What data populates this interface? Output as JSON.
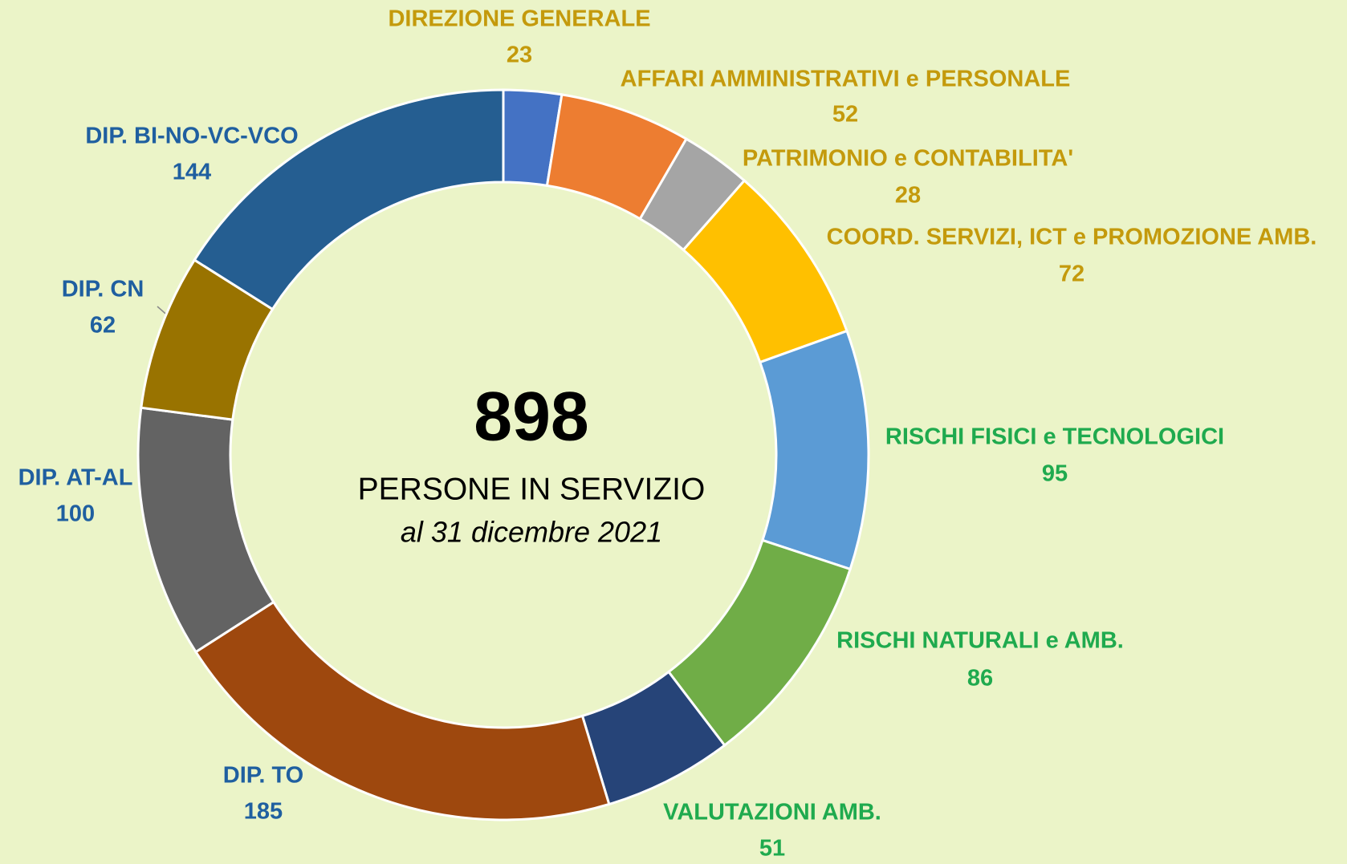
{
  "chart_data": {
    "type": "donut",
    "center_value": 898,
    "center_title": "PERSONE IN SERVIZIO",
    "center_subtitle": "al 31 dicembre 2021",
    "categories": [
      "DIREZIONE GENERALE",
      "AFFARI AMMINISTRATIVI e PERSONALE",
      "PATRIMONIO e CONTABILITA'",
      "COORD. SERVIZI, ICT e PROMOZIONE AMB.",
      "RISCHI FISICI e TECNOLOGICI",
      "RISCHI NATURALI e AMB.",
      "VALUTAZIONI AMB.",
      "DIP. TO",
      "DIP. AT-AL",
      "DIP. CN",
      "DIP. BI-NO-VC-VCO"
    ],
    "values": [
      23,
      52,
      28,
      72,
      95,
      86,
      51,
      185,
      100,
      62,
      144
    ],
    "colors": [
      "#4472c4",
      "#ed7d31",
      "#a5a5a5",
      "#ffc000",
      "#5b9bd5",
      "#70ad47",
      "#264478",
      "#9e480e",
      "#636363",
      "#997300",
      "#255e91"
    ],
    "label_colors": [
      "#c49a0c",
      "#c49a0c",
      "#c49a0c",
      "#c49a0c",
      "#1faa4e",
      "#1faa4e",
      "#1faa4e",
      "#1f5fa0",
      "#1f5fa0",
      "#1f5fa0",
      "#1f5fa0"
    ]
  }
}
